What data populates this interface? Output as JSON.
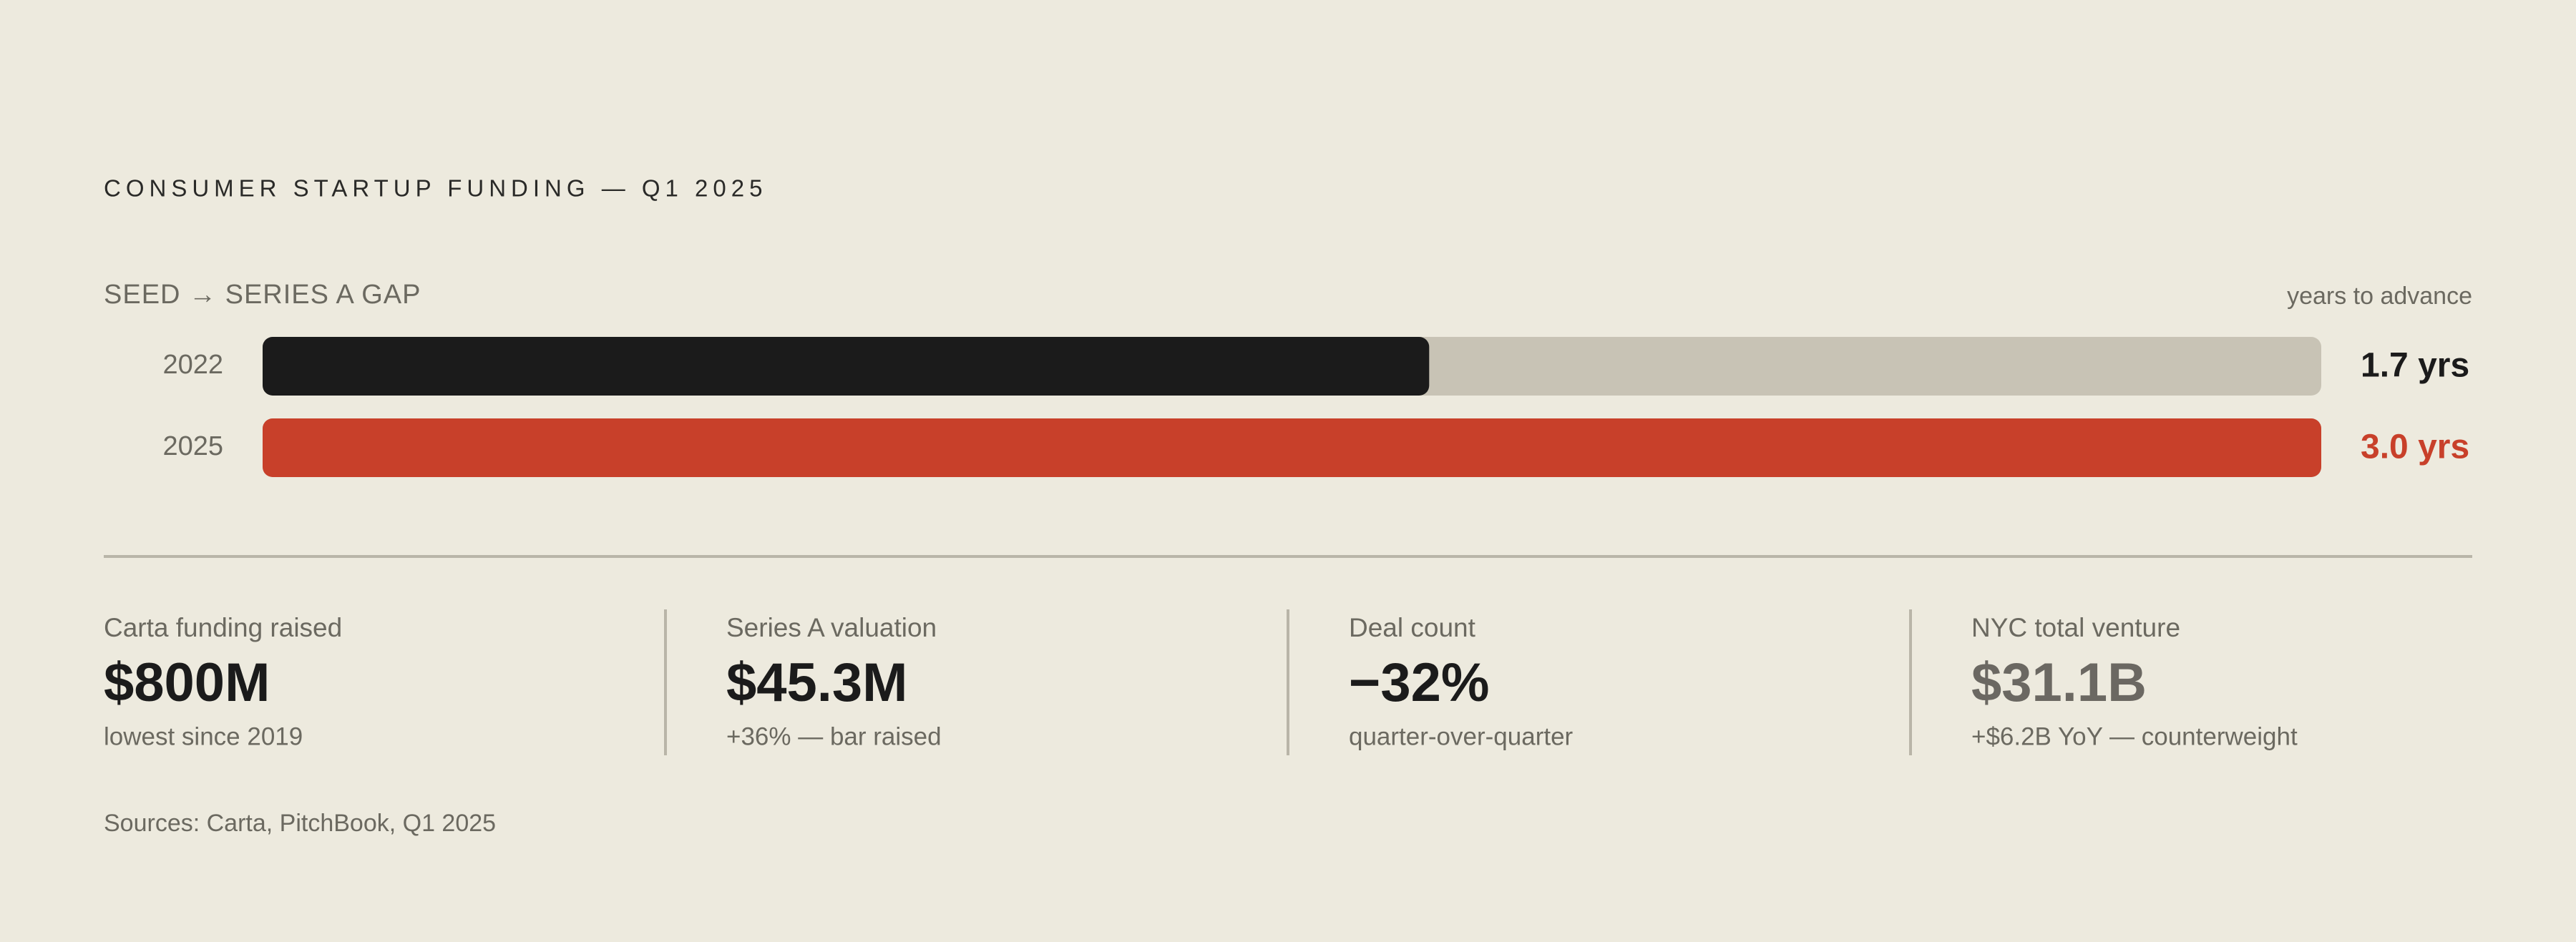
{
  "header": {
    "title": "CONSUMER STARTUP FUNDING — Q1 2025"
  },
  "chart_data": {
    "type": "hbar",
    "title": "SEED → SERIES A GAP",
    "x_label": "years to advance",
    "categories": [
      "2022",
      "2025"
    ],
    "values": [
      1.7,
      3.0
    ],
    "value_labels": [
      "1.7 yrs",
      "3.0 yrs"
    ],
    "colors": [
      "#1b1b1b",
      "#c8402a"
    ],
    "track_color": "#c8c3b5",
    "xlim": [
      0,
      3.0
    ]
  },
  "stats": [
    {
      "label": "Carta funding raised",
      "value": "$800M",
      "note": "lowest since 2019",
      "color": "#1b1b1b"
    },
    {
      "label": "Series A valuation",
      "value": "$45.3M",
      "note": "+36% — bar raised",
      "color": "#1b1b1b"
    },
    {
      "label": "Deal count",
      "value": "−32%",
      "note": "quarter-over-quarter",
      "color": "#1b1b1b"
    },
    {
      "label": "NYC total venture",
      "value": "$31.1B",
      "note": "+$6.2B YoY — counterweight",
      "color": "#6b6862"
    }
  ],
  "footer": {
    "sources": "Sources: Carta, PitchBook, Q1 2025"
  }
}
